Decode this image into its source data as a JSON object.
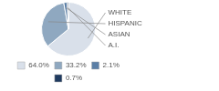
{
  "chart_data": {
    "type": "pie",
    "categories": [
      "WHITE",
      "HISPANIC",
      "ASIAN",
      "A.I."
    ],
    "values": [
      64.0,
      33.2,
      2.1,
      0.7
    ],
    "value_labels": [
      "64.0%",
      "33.2%",
      "2.1%",
      "0.7%"
    ],
    "colors": [
      "#d9e0ea",
      "#8fa8c0",
      "#5b7fa6",
      "#1f3a5f"
    ],
    "legend": "bottom"
  }
}
